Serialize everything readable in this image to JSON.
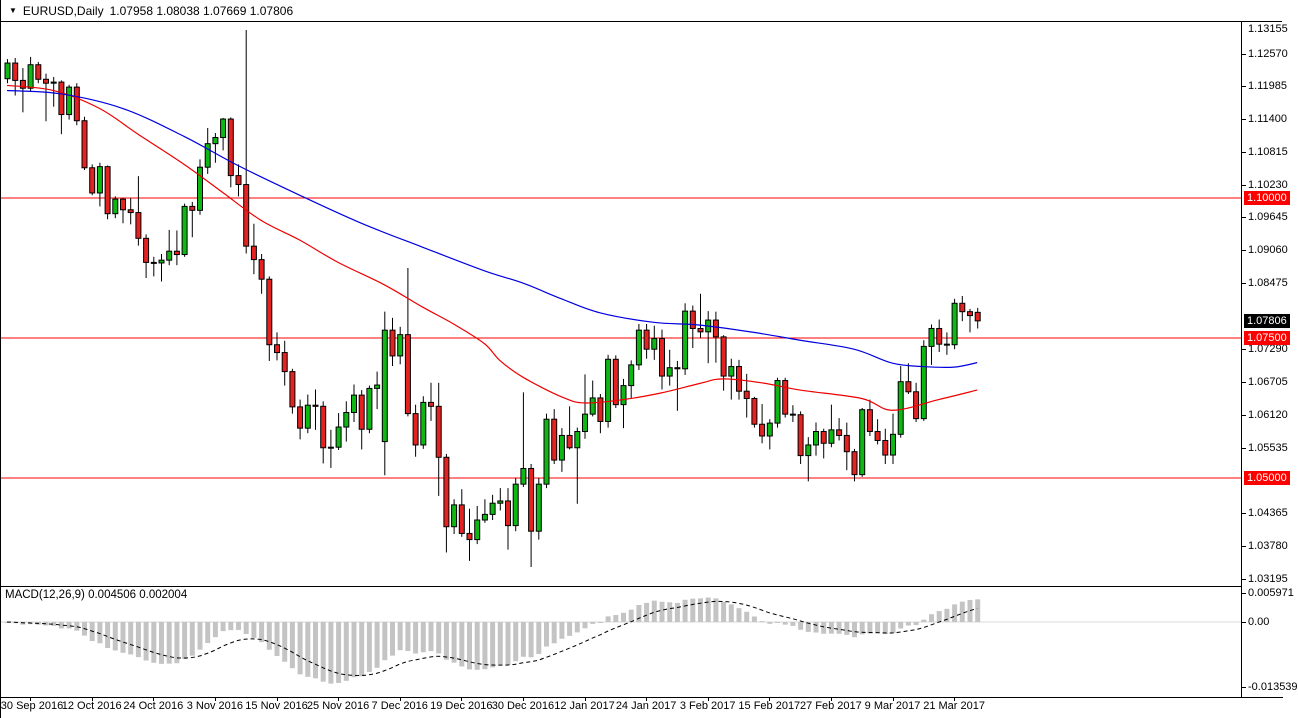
{
  "window": {
    "symbol_title": "EURUSD,Daily",
    "ohlc_text": "1.07958 1.08038 1.07669 1.07806"
  },
  "colors": {
    "up": "#0fb714",
    "down": "#e32222",
    "candle_border": "#000000",
    "wick": "#000000",
    "ma_slow_blue": "#0000e0",
    "ma_fast_red": "#ee0000",
    "hline_red": "#ff0000",
    "badge_red_bg": "#ff0000",
    "badge_black_bg": "#000000",
    "macd_bar": "#c4c4c4",
    "macd_signal": "#000000",
    "macd_zero_line": "#d8d8d8"
  },
  "chart_data": {
    "type": "candlestick",
    "title": "EURUSD,Daily",
    "current_bar": {
      "open": 1.07958,
      "high": 1.08038,
      "low": 1.07669,
      "close": 1.07806
    },
    "y_axis_ticks": [
      {
        "label": "1.13155",
        "price": 1.13155
      },
      {
        "label": "1.12570",
        "price": 1.1257
      },
      {
        "label": "1.11985",
        "price": 1.11985
      },
      {
        "label": "1.11400",
        "price": 1.114
      },
      {
        "label": "1.10815",
        "price": 1.10815
      },
      {
        "label": "1.10230",
        "price": 1.1023
      },
      {
        "label": "1.09645",
        "price": 1.09645
      },
      {
        "label": "1.09060",
        "price": 1.0906
      },
      {
        "label": "1.08475",
        "price": 1.08475
      },
      {
        "label": "1.07290",
        "price": 1.0729
      },
      {
        "label": "1.06705",
        "price": 1.06705
      },
      {
        "label": "1.06120",
        "price": 1.0612
      },
      {
        "label": "1.05535",
        "price": 1.05535
      },
      {
        "label": "1.04365",
        "price": 1.04365
      },
      {
        "label": "1.03780",
        "price": 1.0378
      },
      {
        "label": "1.03195",
        "price": 1.03195
      }
    ],
    "horizontal_lines": [
      {
        "label": "1.10000",
        "price": 1.1
      },
      {
        "label": "1.07500",
        "price": 1.075
      },
      {
        "label": "1.05000",
        "price": 1.05
      }
    ],
    "current_price_label": {
      "label": "1.07806",
      "price": 1.07806
    },
    "x_axis_ticks": [
      {
        "label": "30 Sep 2016",
        "index": 3
      },
      {
        "label": "12 Oct 2016",
        "index": 11
      },
      {
        "label": "24 Oct 2016",
        "index": 19
      },
      {
        "label": "3 Nov 2016",
        "index": 27
      },
      {
        "label": "15 Nov 2016",
        "index": 35
      },
      {
        "label": "25 Nov 2016",
        "index": 43
      },
      {
        "label": "7 Dec 2016",
        "index": 51
      },
      {
        "label": "19 Dec 2016",
        "index": 59
      },
      {
        "label": "30 Dec 2016",
        "index": 67
      },
      {
        "label": "12 Jan 2017",
        "index": 75
      },
      {
        "label": "24 Jan 2017",
        "index": 83
      },
      {
        "label": "3 Feb 2017",
        "index": 91
      },
      {
        "label": "15 Feb 2017",
        "index": 99
      },
      {
        "label": "27 Feb 2017",
        "index": 107
      },
      {
        "label": "9 Mar 2017",
        "index": 115
      },
      {
        "label": "21 Mar 2017",
        "index": 123
      }
    ],
    "candles_ohlc": [
      [
        1.1213,
        1.1248,
        1.1205,
        1.1241
      ],
      [
        1.1241,
        1.125,
        1.1183,
        1.121
      ],
      [
        1.121,
        1.1232,
        1.1153,
        1.1196
      ],
      [
        1.1196,
        1.1252,
        1.119,
        1.1238
      ],
      [
        1.1238,
        1.1243,
        1.1205,
        1.1212
      ],
      [
        1.1212,
        1.1222,
        1.1137,
        1.1205
      ],
      [
        1.1205,
        1.1216,
        1.1163,
        1.1207
      ],
      [
        1.1207,
        1.121,
        1.1114,
        1.1149
      ],
      [
        1.1149,
        1.1202,
        1.114,
        1.1198
      ],
      [
        1.1198,
        1.1205,
        1.113,
        1.1138
      ],
      [
        1.1138,
        1.1145,
        1.105,
        1.1054
      ],
      [
        1.1054,
        1.106,
        1.1005,
        1.1009
      ],
      [
        1.1009,
        1.1063,
        1.0985,
        1.1056
      ],
      [
        1.1056,
        1.1058,
        1.0962,
        1.0972
      ],
      [
        1.0972,
        1.1003,
        1.0964,
        1.0998
      ],
      [
        1.0998,
        1.1,
        1.0955,
        1.0979
      ],
      [
        1.0979,
        1.1,
        1.0953,
        1.0974
      ],
      [
        1.0974,
        1.1039,
        1.0915,
        1.0928
      ],
      [
        1.0928,
        1.0935,
        1.0857,
        1.0885
      ],
      [
        1.0885,
        1.0895,
        1.086,
        1.0884
      ],
      [
        1.0884,
        1.09,
        1.0851,
        1.0889
      ],
      [
        1.0889,
        1.0943,
        1.088,
        1.0905
      ],
      [
        1.0905,
        1.0942,
        1.088,
        1.0899
      ],
      [
        1.0899,
        1.099,
        1.0895,
        1.0985
      ],
      [
        1.0985,
        1.0993,
        1.093,
        1.0978
      ],
      [
        1.0978,
        1.1069,
        1.097,
        1.1055
      ],
      [
        1.1055,
        1.1125,
        1.1043,
        1.1097
      ],
      [
        1.1097,
        1.1116,
        1.1063,
        1.1108
      ],
      [
        1.1108,
        1.1143,
        1.1085,
        1.1141
      ],
      [
        1.1141,
        1.1144,
        1.1019,
        1.104
      ],
      [
        1.104,
        1.106,
        1.1003,
        1.1024
      ],
      [
        1.1024,
        1.13,
        1.0901,
        1.0914
      ],
      [
        1.0914,
        1.0954,
        1.0864,
        1.089
      ],
      [
        1.089,
        1.09,
        1.0829,
        1.0855
      ],
      [
        1.0855,
        1.086,
        1.0709,
        1.0738
      ],
      [
        1.0738,
        1.076,
        1.071,
        1.0724
      ],
      [
        1.0724,
        1.0745,
        1.0665,
        1.069
      ],
      [
        1.069,
        1.0695,
        1.0615,
        1.0627
      ],
      [
        1.0627,
        1.064,
        1.0569,
        1.0589
      ],
      [
        1.0589,
        1.0649,
        1.058,
        1.063
      ],
      [
        1.063,
        1.0658,
        1.0586,
        1.0628
      ],
      [
        1.0628,
        1.0637,
        1.0526,
        1.0554
      ],
      [
        1.0554,
        1.0586,
        1.0518,
        1.0555
      ],
      [
        1.0555,
        1.0616,
        1.055,
        1.0591
      ],
      [
        1.0591,
        1.0637,
        1.0565,
        1.0617
      ],
      [
        1.0617,
        1.0667,
        1.06,
        1.0648
      ],
      [
        1.0648,
        1.0657,
        1.0551,
        1.0587
      ],
      [
        1.0587,
        1.0665,
        1.058,
        1.066
      ],
      [
        1.066,
        1.069,
        1.0623,
        1.0666
      ],
      [
        1.0565,
        1.0797,
        1.0505,
        1.0764
      ],
      [
        1.0764,
        1.0786,
        1.07,
        1.0718
      ],
      [
        1.0718,
        1.077,
        1.0703,
        1.0756
      ],
      [
        1.0756,
        1.0875,
        1.061,
        1.0615
      ],
      [
        1.0615,
        1.0631,
        1.0538,
        1.0559
      ],
      [
        1.0559,
        1.0646,
        1.0552,
        1.0635
      ],
      [
        1.0635,
        1.067,
        1.0602,
        1.0628
      ],
      [
        1.0628,
        1.067,
        1.0468,
        1.0537
      ],
      [
        1.0537,
        1.0543,
        1.0367,
        1.0413
      ],
      [
        1.0413,
        1.0462,
        1.04,
        1.0452
      ],
      [
        1.0452,
        1.048,
        1.0395,
        1.0401
      ],
      [
        1.0401,
        1.0445,
        1.0352,
        1.039
      ],
      [
        1.039,
        1.045,
        1.0382,
        1.0425
      ],
      [
        1.0425,
        1.0462,
        1.042,
        1.0435
      ],
      [
        1.0435,
        1.047,
        1.0425,
        1.0455
      ],
      [
        1.0455,
        1.0482,
        1.0442,
        1.0459
      ],
      [
        1.0459,
        1.0482,
        1.0372,
        1.0415
      ],
      [
        1.0415,
        1.05,
        1.0405,
        1.0489
      ],
      [
        1.0489,
        1.0653,
        1.0484,
        1.0517
      ],
      [
        1.0517,
        1.0525,
        1.0341,
        1.0405
      ],
      [
        1.0405,
        1.05,
        1.039,
        1.0489
      ],
      [
        1.0489,
        1.0615,
        1.0482,
        1.0605
      ],
      [
        1.0605,
        1.0623,
        1.0525,
        1.0532
      ],
      [
        1.0532,
        1.0589,
        1.0511,
        1.0576
      ],
      [
        1.0576,
        1.0628,
        1.0551,
        1.0554
      ],
      [
        1.0554,
        1.059,
        1.0454,
        1.0583
      ],
      [
        1.0583,
        1.0685,
        1.057,
        1.0614
      ],
      [
        1.0614,
        1.0674,
        1.061,
        1.0643
      ],
      [
        1.0643,
        1.065,
        1.058,
        1.0601
      ],
      [
        1.0601,
        1.072,
        1.059,
        1.0712
      ],
      [
        1.0712,
        1.0719,
        1.0625,
        1.0631
      ],
      [
        1.0631,
        1.0677,
        1.0589,
        1.0665
      ],
      [
        1.0665,
        1.071,
        1.0642,
        1.0702
      ],
      [
        1.0702,
        1.0775,
        1.0693,
        1.0764
      ],
      [
        1.0764,
        1.0775,
        1.0713,
        1.073
      ],
      [
        1.073,
        1.0772,
        1.0711,
        1.0749
      ],
      [
        1.0749,
        1.0765,
        1.0658,
        1.0682
      ],
      [
        1.0682,
        1.0729,
        1.0665,
        1.0697
      ],
      [
        1.0697,
        1.0709,
        1.062,
        1.0695
      ],
      [
        1.0695,
        1.0812,
        1.0684,
        1.0798
      ],
      [
        1.0798,
        1.0808,
        1.0732,
        1.0767
      ],
      [
        1.0767,
        1.0829,
        1.075,
        1.0761
      ],
      [
        1.0761,
        1.0798,
        1.0705,
        1.0782
      ],
      [
        1.0782,
        1.0797,
        1.0706,
        1.0752
      ],
      [
        1.0752,
        1.0755,
        1.0656,
        1.0682
      ],
      [
        1.0682,
        1.0713,
        1.064,
        1.0699
      ],
      [
        1.0699,
        1.0711,
        1.064,
        1.0655
      ],
      [
        1.0655,
        1.0686,
        1.0608,
        1.0642
      ],
      [
        1.0642,
        1.0645,
        1.059,
        1.0596
      ],
      [
        1.0596,
        1.0632,
        1.0562,
        1.0575
      ],
      [
        1.0575,
        1.0605,
        1.0551,
        1.0598
      ],
      [
        1.0598,
        1.0679,
        1.059,
        1.0674
      ],
      [
        1.0674,
        1.0679,
        1.0608,
        1.0614
      ],
      [
        1.0614,
        1.063,
        1.06,
        1.0613
      ],
      [
        1.0613,
        1.0619,
        1.0525,
        1.054
      ],
      [
        1.054,
        1.0573,
        1.0494,
        1.0559
      ],
      [
        1.0559,
        1.0599,
        1.054,
        1.0583
      ],
      [
        1.0583,
        1.0588,
        1.0535,
        1.0562
      ],
      [
        1.0562,
        1.0631,
        1.0555,
        1.0586
      ],
      [
        1.0586,
        1.0607,
        1.0567,
        1.0576
      ],
      [
        1.0576,
        1.0599,
        1.0514,
        1.0547
      ],
      [
        1.0547,
        1.0552,
        1.0494,
        1.0506
      ],
      [
        1.0506,
        1.0625,
        1.0502,
        1.0622
      ],
      [
        1.0622,
        1.064,
        1.0575,
        1.0583
      ],
      [
        1.0583,
        1.0605,
        1.056,
        1.0567
      ],
      [
        1.0567,
        1.0588,
        1.0525,
        1.0541
      ],
      [
        1.0541,
        1.0615,
        1.0525,
        1.0578
      ],
      [
        1.0578,
        1.07,
        1.0572,
        1.0672
      ],
      [
        1.0672,
        1.0705,
        1.065,
        1.0654
      ],
      [
        1.0654,
        1.067,
        1.06,
        1.0606
      ],
      [
        1.0606,
        1.0746,
        1.0602,
        1.0735
      ],
      [
        1.0735,
        1.0774,
        1.0702,
        1.0767
      ],
      [
        1.0767,
        1.0783,
        1.0725,
        1.0739
      ],
      [
        1.0739,
        1.076,
        1.072,
        1.0738
      ],
      [
        1.0738,
        1.082,
        1.073,
        1.0812
      ],
      [
        1.0812,
        1.0825,
        1.078,
        1.0797
      ],
      [
        1.0797,
        1.0802,
        1.076,
        1.079
      ],
      [
        1.07958,
        1.08038,
        1.07669,
        1.07806
      ]
    ],
    "ma_slow_blue_points": [
      [
        0,
        1.1192
      ],
      [
        7,
        1.1186
      ],
      [
        15,
        1.116
      ],
      [
        23,
        1.111
      ],
      [
        30,
        1.1058
      ],
      [
        38,
        1.1005
      ],
      [
        46,
        1.0955
      ],
      [
        54,
        1.0912
      ],
      [
        62,
        1.087
      ],
      [
        67,
        1.0848
      ],
      [
        72,
        1.082
      ],
      [
        77,
        1.0795
      ],
      [
        84,
        1.0778
      ],
      [
        90,
        1.0773
      ],
      [
        97,
        1.076
      ],
      [
        103,
        1.0746
      ],
      [
        110,
        1.073
      ],
      [
        115,
        1.0705
      ],
      [
        119,
        1.0699
      ],
      [
        123,
        1.0698
      ],
      [
        126,
        1.0706
      ]
    ],
    "ma_fast_red_points": [
      [
        0,
        1.1201
      ],
      [
        6,
        1.1192
      ],
      [
        12,
        1.116
      ],
      [
        17,
        1.1114
      ],
      [
        23,
        1.106
      ],
      [
        28,
        1.101
      ],
      [
        33,
        1.096
      ],
      [
        38,
        1.0925
      ],
      [
        43,
        1.0885
      ],
      [
        49,
        1.0845
      ],
      [
        54,
        1.0805
      ],
      [
        58,
        1.0775
      ],
      [
        62,
        1.074
      ],
      [
        64,
        1.071
      ],
      [
        67,
        1.068
      ],
      [
        72,
        1.0645
      ],
      [
        75,
        1.0634
      ],
      [
        80,
        1.064
      ],
      [
        85,
        1.0652
      ],
      [
        90,
        1.0669
      ],
      [
        93,
        1.0677
      ],
      [
        98,
        1.067
      ],
      [
        103,
        1.0657
      ],
      [
        111,
        1.0642
      ],
      [
        115,
        1.0621
      ],
      [
        121,
        1.064
      ],
      [
        126,
        1.0657
      ]
    ],
    "macd": {
      "label": "MACD(12,26,9)",
      "values_text": "0.004506 0.002004",
      "main_value": 0.004506,
      "signal_value": 0.002004,
      "params": [
        12,
        26,
        9
      ],
      "y_axis_ticks": [
        {
          "label": "0.005971",
          "value": 0.005971
        },
        {
          "label": "0.00",
          "value": 0.0
        },
        {
          "label": "-0.013539",
          "value": -0.013539
        }
      ]
    }
  }
}
